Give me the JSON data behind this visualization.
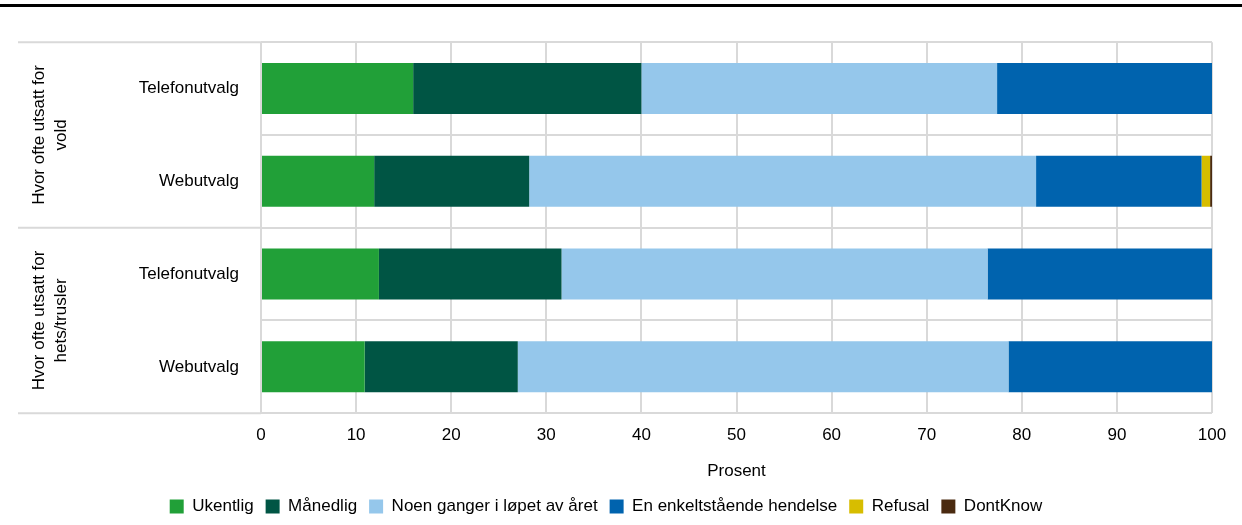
{
  "chart_data": {
    "type": "bar",
    "orientation": "horizontal",
    "stacked": true,
    "categories": [
      "Telefonutvalg",
      "Webutvalg",
      "Telefonutvalg",
      "Webutvalg"
    ],
    "series": [
      {
        "name": "Ukentlig",
        "color": "#21a038",
        "values": [
          16,
          11.9,
          12.4,
          10.9
        ]
      },
      {
        "name": "Månedlig",
        "color": "#005544",
        "values": [
          24,
          16.3,
          19.2,
          16.1
        ]
      },
      {
        "name": "Noen ganger i løpet av året",
        "color": "#95c7eb",
        "values": [
          37.4,
          53.3,
          44.8,
          51.6
        ]
      },
      {
        "name": "En enkeltstående hendelse",
        "color": "#0063ae",
        "values": [
          22.6,
          17.4,
          23.6,
          21.4
        ]
      },
      {
        "name": "Refusal",
        "color": "#d7bd00",
        "values": [
          0,
          0.9,
          0,
          0
        ]
      },
      {
        "name": "DontKnow",
        "color": "#4a2a10",
        "values": [
          0,
          0.2,
          0,
          0
        ]
      }
    ],
    "xlim": [
      0,
      100
    ],
    "xticks": [
      0,
      10,
      20,
      30,
      40,
      50,
      60,
      70,
      80,
      90,
      100
    ],
    "xlabel": "Prosent",
    "annotations": [
      "Hvor ofte utsatt for vold",
      "Hvor ofte utsatt for hets/trusler"
    ],
    "grid": true,
    "legend": "bottom"
  }
}
